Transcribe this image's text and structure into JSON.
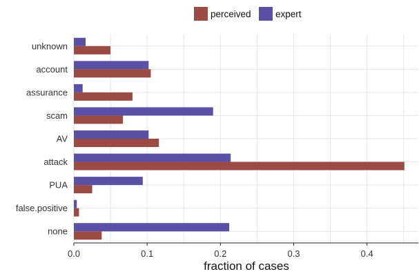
{
  "chart_data": {
    "type": "bar",
    "orientation": "horizontal",
    "categories": [
      "unknown",
      "account",
      "assurance",
      "scam",
      "AV",
      "attack",
      "PUA",
      "false.positive",
      "none"
    ],
    "series": [
      {
        "name": "perceived",
        "color": "#9b4a44",
        "values": [
          0.05,
          0.105,
          0.08,
          0.067,
          0.116,
          0.451,
          0.025,
          0.007,
          0.038
        ]
      },
      {
        "name": "expert",
        "color": "#5a50a5",
        "values": [
          0.016,
          0.102,
          0.012,
          0.19,
          0.102,
          0.214,
          0.094,
          0.004,
          0.212
        ]
      }
    ],
    "xlabel": "fraction of cases",
    "xlim": [
      0.0,
      0.47
    ],
    "xticks": [
      0.0,
      0.1,
      0.2,
      0.3,
      0.4
    ],
    "xtick_labels": [
      "0.0",
      "0.1",
      "0.2",
      "0.3",
      "0.4"
    ],
    "grid": true,
    "legend_position": "top"
  }
}
